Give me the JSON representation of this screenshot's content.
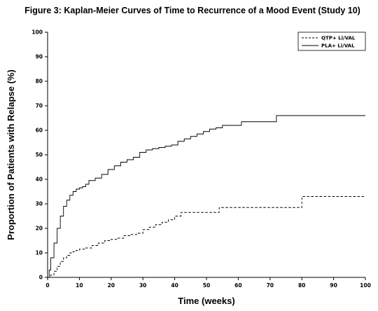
{
  "chart_data": {
    "type": "line",
    "title": "Figure 3: Kaplan-Meier Curves of Time to Recurrence of a Mood Event (Study 10)",
    "xlabel": "Time (weeks)",
    "ylabel": "Proportion of Patients with Relapse (%)",
    "xlim": [
      0,
      100
    ],
    "ylim": [
      0,
      100
    ],
    "xticks": [
      "0",
      "10",
      "20",
      "30",
      "40",
      "50",
      "60",
      "70",
      "80",
      "90",
      "100"
    ],
    "yticks": [
      "0",
      "10",
      "20",
      "30",
      "40",
      "50",
      "60",
      "70",
      "80",
      "90",
      "100"
    ],
    "legend_position": "top-right",
    "grid": false,
    "series": [
      {
        "name": "QTP+ Li/VAL",
        "style": "dashed",
        "step": true,
        "points": [
          [
            0,
            0
          ],
          [
            1,
            1
          ],
          [
            2,
            2.5
          ],
          [
            3,
            4.5
          ],
          [
            4,
            6.5
          ],
          [
            5,
            8
          ],
          [
            6,
            9
          ],
          [
            7,
            10
          ],
          [
            8,
            10.5
          ],
          [
            9,
            11
          ],
          [
            10,
            11.5
          ],
          [
            12,
            12
          ],
          [
            14,
            13
          ],
          [
            16,
            14
          ],
          [
            18,
            15
          ],
          [
            20,
            15.5
          ],
          [
            22,
            16
          ],
          [
            24,
            17
          ],
          [
            26,
            17.5
          ],
          [
            28,
            18
          ],
          [
            30,
            19.5
          ],
          [
            32,
            20.5
          ],
          [
            34,
            21.5
          ],
          [
            36,
            22.5
          ],
          [
            38,
            23.5
          ],
          [
            40,
            25
          ],
          [
            42,
            26.5
          ],
          [
            52,
            26.5
          ],
          [
            54,
            28.5
          ],
          [
            80,
            28.5
          ],
          [
            80,
            33
          ],
          [
            100,
            33
          ]
        ]
      },
      {
        "name": "PLA+ Li/VAL",
        "style": "solid",
        "step": true,
        "points": [
          [
            0,
            0
          ],
          [
            0.5,
            3
          ],
          [
            1,
            8
          ],
          [
            2,
            14
          ],
          [
            3,
            20
          ],
          [
            4,
            25
          ],
          [
            5,
            29
          ],
          [
            6,
            31.5
          ],
          [
            7,
            33.5
          ],
          [
            8,
            35
          ],
          [
            9,
            36
          ],
          [
            10,
            36.5
          ],
          [
            11,
            37
          ],
          [
            12,
            38
          ],
          [
            13,
            39.5
          ],
          [
            15,
            40.5
          ],
          [
            17,
            42
          ],
          [
            19,
            44
          ],
          [
            21,
            45.5
          ],
          [
            23,
            47
          ],
          [
            25,
            48
          ],
          [
            27,
            49
          ],
          [
            29,
            51
          ],
          [
            31,
            52
          ],
          [
            33,
            52.5
          ],
          [
            35,
            53
          ],
          [
            37,
            53.5
          ],
          [
            39,
            54
          ],
          [
            41,
            55.5
          ],
          [
            43,
            56.5
          ],
          [
            45,
            57.5
          ],
          [
            47,
            58.5
          ],
          [
            49,
            59.5
          ],
          [
            51,
            60.5
          ],
          [
            53,
            61
          ],
          [
            55,
            62
          ],
          [
            60,
            62
          ],
          [
            61,
            63.5
          ],
          [
            71,
            63.5
          ],
          [
            72,
            66
          ],
          [
            100,
            66
          ]
        ]
      }
    ]
  }
}
